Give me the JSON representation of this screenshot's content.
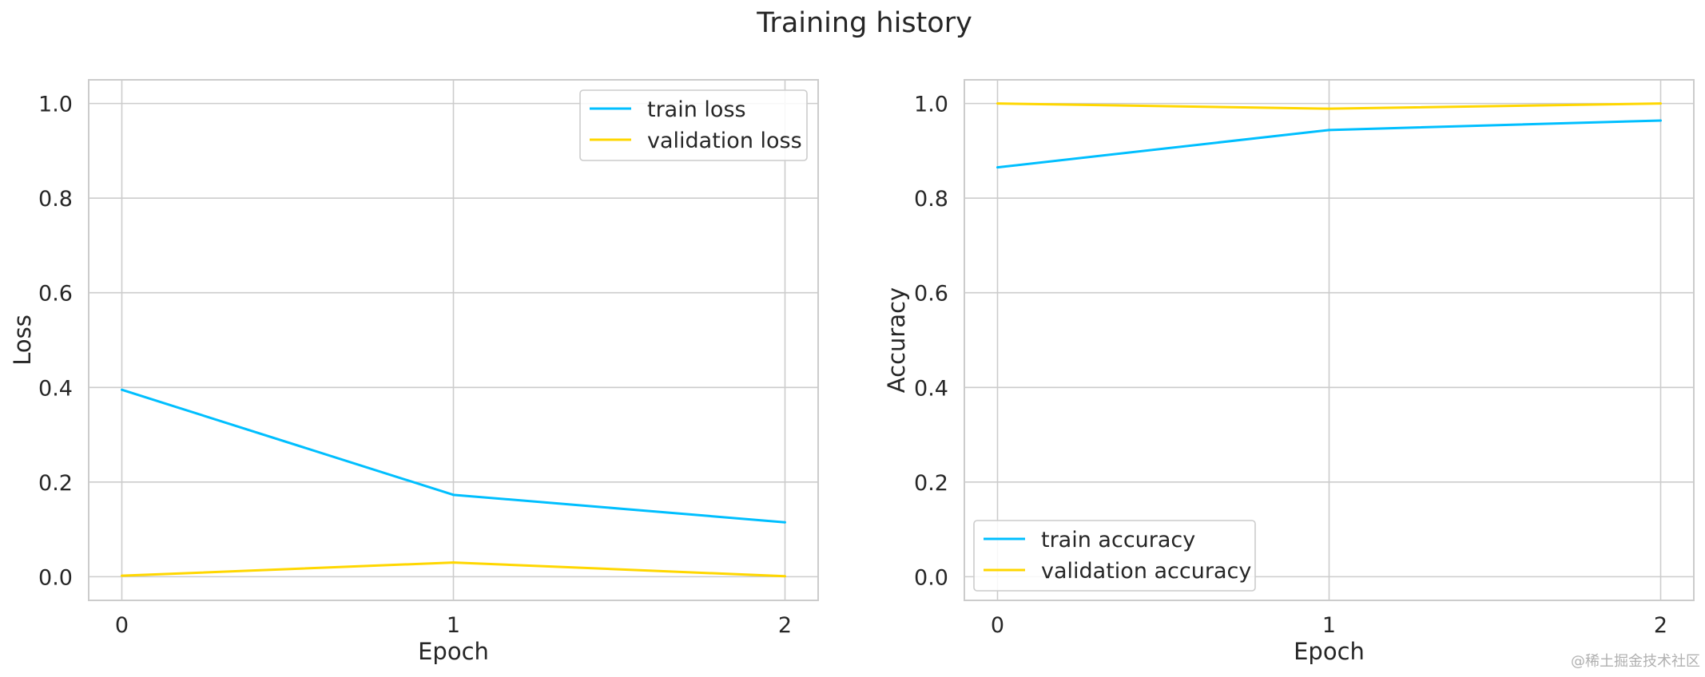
{
  "watermark": "@稀土掘金技术社区",
  "chart_data": [
    {
      "type": "line",
      "title": "Training history",
      "xlabel": "Epoch",
      "ylabel": "Loss",
      "x": [
        0,
        1,
        2
      ],
      "xlim": [
        -0.1,
        2.1
      ],
      "ylim": [
        -0.05,
        1.05
      ],
      "xticks": [
        0,
        1,
        2
      ],
      "yticks": [
        0.0,
        0.2,
        0.4,
        0.6,
        0.8,
        1.0
      ],
      "ytick_labels": [
        "0.0",
        "0.2",
        "0.4",
        "0.6",
        "0.8",
        "1.0"
      ],
      "xtick_labels": [
        "0",
        "1",
        "2"
      ],
      "grid": true,
      "legend_position": "upper right",
      "series": [
        {
          "name": "train loss",
          "values": [
            0.395,
            0.173,
            0.115
          ],
          "color": "#00BFFF"
        },
        {
          "name": "validation loss",
          "values": [
            0.002,
            0.03,
            0.001
          ],
          "color": "#FFD700"
        }
      ]
    },
    {
      "type": "line",
      "title": "",
      "xlabel": "Epoch",
      "ylabel": "Accuracy",
      "x": [
        0,
        1,
        2
      ],
      "xlim": [
        -0.1,
        2.1
      ],
      "ylim": [
        -0.05,
        1.05
      ],
      "xticks": [
        0,
        1,
        2
      ],
      "yticks": [
        0.0,
        0.2,
        0.4,
        0.6,
        0.8,
        1.0
      ],
      "ytick_labels": [
        "0.0",
        "0.2",
        "0.4",
        "0.6",
        "0.8",
        "1.0"
      ],
      "xtick_labels": [
        "0",
        "1",
        "2"
      ],
      "grid": true,
      "legend_position": "lower left",
      "series": [
        {
          "name": "train accuracy",
          "values": [
            0.865,
            0.944,
            0.964
          ],
          "color": "#00BFFF"
        },
        {
          "name": "validation accuracy",
          "values": [
            1.0,
            0.989,
            1.0
          ],
          "color": "#FFD700"
        }
      ]
    }
  ]
}
